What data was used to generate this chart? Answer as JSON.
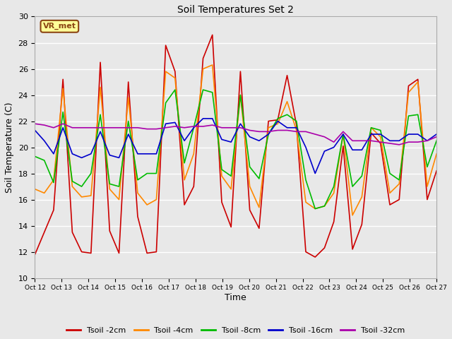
{
  "title": "Soil Temperatures Set 2",
  "xlabel": "Time",
  "ylabel": "Soil Temperature (C)",
  "ylim": [
    10,
    30
  ],
  "background_color": "#e8e8e8",
  "plot_bg_color": "#e8e8e8",
  "grid_color": "#ffffff",
  "annotation_text": "VR_met",
  "annotation_bg": "#ffff99",
  "annotation_border": "#8b4513",
  "xtick_labels": [
    "Oct 12",
    "Oct 13",
    "Oct 14",
    "Oct 15",
    "Oct 16",
    "Oct 17",
    "Oct 18",
    "Oct 19",
    "Oct 20",
    "Oct 21",
    "Oct 22",
    "Oct 23",
    "Oct 24",
    "Oct 25",
    "Oct 26",
    "Oct 27"
  ],
  "ytick_values": [
    10,
    12,
    14,
    16,
    18,
    20,
    22,
    24,
    26,
    28,
    30
  ],
  "series": {
    "Tsoil -2cm": {
      "color": "#cc0000",
      "lw": 1.2
    },
    "Tsoil -4cm": {
      "color": "#ff8800",
      "lw": 1.2
    },
    "Tsoil -8cm": {
      "color": "#00bb00",
      "lw": 1.2
    },
    "Tsoil -16cm": {
      "color": "#0000cc",
      "lw": 1.2
    },
    "Tsoil -32cm": {
      "color": "#aa00aa",
      "lw": 1.2
    }
  },
  "tsoil_2cm": [
    11.8,
    13.5,
    15.2,
    25.2,
    13.5,
    12.0,
    11.9,
    26.5,
    13.6,
    11.9,
    25.0,
    14.7,
    11.9,
    12.0,
    27.8,
    25.8,
    15.6,
    17.0,
    26.8,
    28.6,
    15.8,
    13.9,
    25.8,
    15.2,
    13.8,
    22.0,
    22.1,
    25.5,
    21.7,
    12.0,
    11.6,
    12.3,
    14.3,
    20.1,
    12.2,
    14.1,
    21.1,
    20.3,
    15.6,
    16.0,
    24.7,
    25.2,
    16.0,
    18.2
  ],
  "tsoil_4cm": [
    16.8,
    16.5,
    17.5,
    24.5,
    17.0,
    16.2,
    16.3,
    24.6,
    16.8,
    16.0,
    23.8,
    16.5,
    15.6,
    16.0,
    25.8,
    25.3,
    17.5,
    19.5,
    26.0,
    26.3,
    17.8,
    16.8,
    24.0,
    17.0,
    15.4,
    21.5,
    21.8,
    23.5,
    21.3,
    15.8,
    15.3,
    15.5,
    16.5,
    21.0,
    14.8,
    16.2,
    21.5,
    20.8,
    16.5,
    17.2,
    24.2,
    25.0,
    17.0,
    19.5
  ],
  "tsoil_8cm": [
    19.3,
    19.0,
    17.3,
    22.7,
    17.4,
    17.0,
    18.0,
    22.5,
    17.2,
    17.0,
    22.0,
    17.5,
    18.0,
    18.0,
    23.4,
    24.4,
    18.8,
    21.5,
    24.4,
    24.2,
    18.3,
    17.8,
    24.0,
    18.5,
    17.6,
    21.0,
    22.2,
    22.5,
    22.0,
    17.5,
    15.3,
    15.5,
    17.0,
    21.0,
    17.0,
    17.8,
    21.5,
    21.3,
    18.0,
    17.5,
    22.4,
    22.5,
    18.5,
    20.5
  ],
  "tsoil_16cm": [
    21.3,
    20.5,
    19.5,
    21.5,
    19.5,
    19.2,
    19.5,
    21.2,
    19.4,
    19.2,
    21.0,
    19.5,
    19.5,
    19.5,
    21.8,
    21.9,
    20.5,
    21.5,
    22.2,
    22.2,
    20.6,
    20.4,
    21.8,
    20.8,
    20.5,
    21.0,
    22.0,
    21.5,
    21.5,
    20.0,
    18.0,
    19.7,
    20.0,
    21.0,
    19.8,
    19.8,
    21.0,
    21.0,
    20.5,
    20.5,
    21.0,
    21.0,
    20.5,
    21.0
  ],
  "tsoil_32cm": [
    21.8,
    21.7,
    21.5,
    21.8,
    21.5,
    21.5,
    21.5,
    21.5,
    21.5,
    21.5,
    21.5,
    21.5,
    21.4,
    21.4,
    21.5,
    21.6,
    21.5,
    21.6,
    21.6,
    21.7,
    21.5,
    21.5,
    21.5,
    21.3,
    21.2,
    21.2,
    21.3,
    21.3,
    21.2,
    21.2,
    21.0,
    20.8,
    20.4,
    21.2,
    20.5,
    20.5,
    20.5,
    20.4,
    20.3,
    20.2,
    20.4,
    20.4,
    20.5,
    20.8
  ]
}
